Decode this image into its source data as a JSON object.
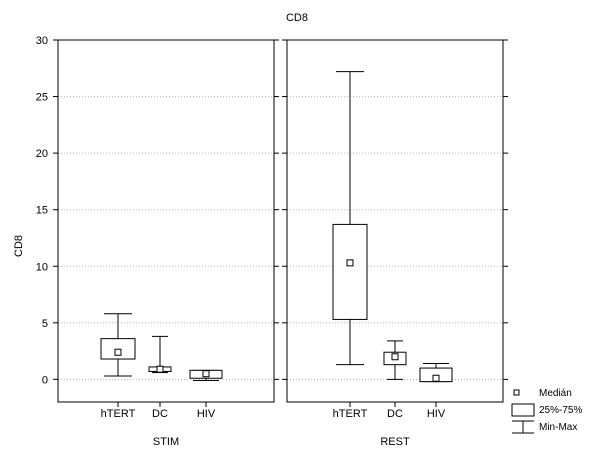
{
  "chart_data": {
    "type": "box",
    "title": "CD8",
    "ylabel": "CD8",
    "ylim": [
      -2,
      30
    ],
    "yticks": [
      0,
      5,
      10,
      15,
      20,
      25,
      30
    ],
    "grid": true,
    "legend_position": "bottom-right",
    "legend": {
      "median": "Medián",
      "box": "25%-75%",
      "whisker": "Min-Max"
    },
    "panels": [
      {
        "label": "STIM",
        "categories": [
          "hTERT",
          "DC",
          "HIV"
        ],
        "boxes": [
          {
            "category": "hTERT",
            "min": 0.3,
            "q1": 1.8,
            "median": 2.4,
            "q3": 3.6,
            "max": 5.8
          },
          {
            "category": "DC",
            "min": 0.6,
            "q1": 0.7,
            "median": 0.9,
            "q3": 1.1,
            "max": 3.8
          },
          {
            "category": "HIV",
            "min": -0.1,
            "q1": 0.1,
            "median": 0.5,
            "q3": 0.8,
            "max": 0.8
          }
        ]
      },
      {
        "label": "REST",
        "categories": [
          "hTERT",
          "DC",
          "HIV"
        ],
        "boxes": [
          {
            "category": "hTERT",
            "min": 1.3,
            "q1": 5.3,
            "median": 10.3,
            "q3": 13.7,
            "max": 27.2
          },
          {
            "category": "DC",
            "min": 0.0,
            "q1": 1.3,
            "median": 2.0,
            "q3": 2.4,
            "max": 3.4
          },
          {
            "category": "HIV",
            "min": -0.2,
            "q1": -0.2,
            "median": 0.1,
            "q3": 1.0,
            "max": 1.4
          }
        ]
      }
    ]
  }
}
